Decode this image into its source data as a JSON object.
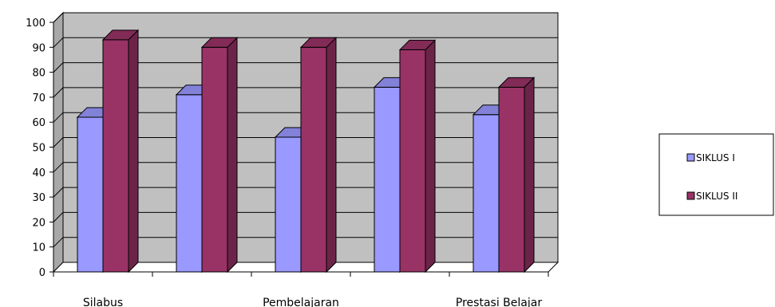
{
  "chart_data": {
    "type": "bar",
    "style": "3d-clustered-column",
    "categories": [
      "Silabus",
      "",
      "Pembelajaran",
      "",
      "Prestasi Belajar"
    ],
    "series": [
      {
        "name": "SIKLUS I",
        "values": [
          62,
          71,
          54,
          74,
          63
        ],
        "color": "#9999FF"
      },
      {
        "name": "SIKLUS II",
        "values": [
          93,
          90,
          90,
          89,
          74
        ],
        "color": "#993366"
      }
    ],
    "ylim": [
      0,
      100
    ],
    "yticks": [
      0,
      10,
      20,
      30,
      40,
      50,
      60,
      70,
      80,
      90,
      100
    ],
    "grid": true,
    "wall_color": "#C0C0C0",
    "legend_position": "right"
  }
}
